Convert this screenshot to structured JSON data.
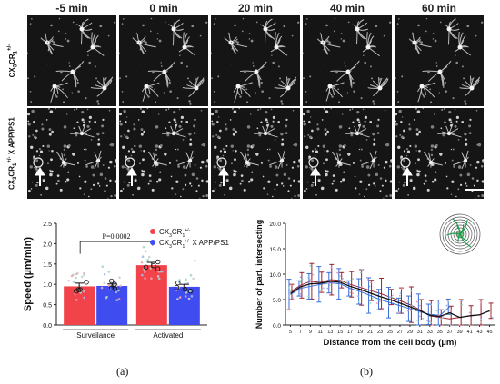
{
  "micrograph": {
    "timepoints": [
      "-5 min",
      "0 min",
      "20 min",
      "40 min",
      "60 min"
    ],
    "rows": [
      {
        "label_main": "CX",
        "label_sub1": "3",
        "label_mid": "CR",
        "label_sub2": "1",
        "label_sup": "+/-",
        "label_suffix": ""
      },
      {
        "label_main": "CX",
        "label_sub1": "3",
        "label_mid": "CR",
        "label_sub2": "1",
        "label_sup": "+/-",
        "label_suffix": " X APP/PS1"
      }
    ]
  },
  "captions": {
    "a": "(a)",
    "b": "(b)"
  },
  "chart_data": [
    {
      "type": "bar",
      "ylabel": "Speed (µm/min)",
      "ylim": [
        0,
        2.5
      ],
      "yticks": [
        "0.0",
        "0.5",
        "1.0",
        "1.5",
        "2.0",
        "2.5"
      ],
      "categories": [
        "Surveilance",
        "Activated"
      ],
      "series": [
        {
          "name": "CX3CR1+/-",
          "color": "#f2424a",
          "values": [
            0.95,
            1.47
          ],
          "errors": [
            0.08,
            0.07
          ]
        },
        {
          "name": "CX3CR1+/- X APP/PS1",
          "color": "#3f4df0",
          "values": [
            0.96,
            0.94
          ],
          "errors": [
            0.05,
            0.06
          ]
        }
      ],
      "legend": [
        {
          "main": "CX",
          "sub1": "3",
          "mid": "CR",
          "sub2": "1",
          "sup": "+/-",
          "suffix": ""
        },
        {
          "main": "CX",
          "sub1": "3",
          "mid": "CR",
          "sub2": "1",
          "sup": "+/-",
          "suffix": " X APP/PS1"
        }
      ],
      "annotation": "P=0.0002"
    },
    {
      "type": "line",
      "xlabel": "Distance from the cell body (µm)",
      "ylabel": "Number of part. intersecting",
      "ylim": [
        0,
        20
      ],
      "yticks": [
        "0.0",
        "5.0",
        "10.0",
        "15.0",
        "20.0"
      ],
      "x": [
        5,
        7,
        9,
        11,
        13,
        15,
        17,
        19,
        21,
        23,
        25,
        27,
        29,
        31,
        33,
        35,
        37,
        39,
        41,
        43,
        45
      ],
      "series": [
        {
          "color": "#9c2230",
          "values": [
            6.5,
            7.8,
            8.6,
            8.4,
            8.9,
            8.8,
            8.0,
            7.4,
            6.8,
            6.2,
            5.5,
            4.8,
            4.0,
            3.0,
            1.8,
            1.5,
            1.2,
            1.5,
            1.8,
            2.0,
            2.8
          ]
        },
        {
          "color": "#3a6fd8",
          "values": [
            6.0,
            7.2,
            7.6,
            8.0,
            8.3,
            8.1,
            7.2,
            6.6,
            5.8,
            5.0,
            4.4,
            3.8,
            3.2,
            2.6,
            2.1,
            1.9,
            3.6,
            0.0,
            0.0,
            0.0,
            0.0
          ]
        },
        {
          "color": "#111111",
          "values": [
            6.2,
            7.5,
            8.1,
            8.2,
            8.6,
            8.4,
            7.6,
            7.0,
            6.3,
            5.6,
            5.0,
            4.3,
            3.6,
            2.8,
            1.9,
            1.7,
            2.4,
            1.5,
            1.8,
            2.0,
            2.8
          ]
        }
      ]
    }
  ]
}
